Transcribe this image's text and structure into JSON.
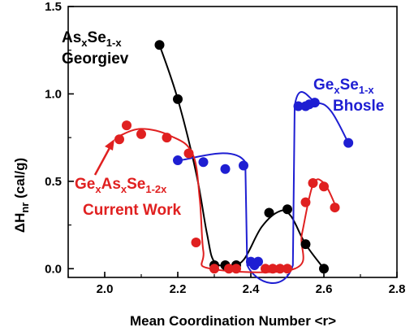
{
  "chart_data": {
    "type": "scatter",
    "xlabel": "Mean Coordination Number <r>",
    "ylabel": {
      "base": "ΔH",
      "sub": "nr",
      "unit": " (cal/g)"
    },
    "xlim": [
      1.9,
      2.8
    ],
    "ylim": [
      -0.05,
      1.5
    ],
    "xticks": [
      "2.0",
      "2.2",
      "2.4",
      "2.6",
      "2.8"
    ],
    "yticks": [
      "0.0",
      "0.5",
      "1.0",
      "1.5"
    ],
    "grid": false,
    "colors": {
      "black": "#000000",
      "blue": "#1e1ed2",
      "red": "#e02020"
    },
    "series": [
      {
        "name": "AsxSe1-x Georgiev",
        "color": "#000000",
        "points": [
          {
            "x": 2.15,
            "y": 1.28
          },
          {
            "x": 2.2,
            "y": 0.97
          },
          {
            "x": 2.3,
            "y": 0.02
          },
          {
            "x": 2.33,
            "y": 0.02
          },
          {
            "x": 2.36,
            "y": 0.02
          },
          {
            "x": 2.45,
            "y": 0.32
          },
          {
            "x": 2.5,
            "y": 0.34
          },
          {
            "x": 2.55,
            "y": 0.14
          },
          {
            "x": 2.6,
            "y": 0.0
          }
        ],
        "curve": [
          {
            "x": 2.15,
            "y": 1.28
          },
          {
            "x": 2.2,
            "y": 0.97
          },
          {
            "x": 2.25,
            "y": 0.55
          },
          {
            "x": 2.28,
            "y": 0.2
          },
          {
            "x": 2.3,
            "y": 0.04
          },
          {
            "x": 2.34,
            "y": 0.02
          },
          {
            "x": 2.38,
            "y": 0.05
          },
          {
            "x": 2.43,
            "y": 0.24
          },
          {
            "x": 2.48,
            "y": 0.33
          },
          {
            "x": 2.51,
            "y": 0.3
          },
          {
            "x": 2.55,
            "y": 0.14
          },
          {
            "x": 2.6,
            "y": 0.0
          }
        ]
      },
      {
        "name": "GexSe1-x Bhosle",
        "color": "#1e1ed2",
        "points": [
          {
            "x": 2.2,
            "y": 0.62
          },
          {
            "x": 2.27,
            "y": 0.61
          },
          {
            "x": 2.33,
            "y": 0.57
          },
          {
            "x": 2.38,
            "y": 0.59
          },
          {
            "x": 2.4,
            "y": 0.04
          },
          {
            "x": 2.41,
            "y": 0.02
          },
          {
            "x": 2.42,
            "y": 0.04
          },
          {
            "x": 2.53,
            "y": 0.93
          },
          {
            "x": 2.55,
            "y": 0.93
          },
          {
            "x": 2.56,
            "y": 0.94
          },
          {
            "x": 2.575,
            "y": 0.95
          },
          {
            "x": 2.667,
            "y": 0.72
          }
        ],
        "curve": [
          {
            "x": 2.2,
            "y": 0.62
          },
          {
            "x": 2.385,
            "y": 0.61
          },
          {
            "x": 2.39,
            "y": 0.02
          },
          {
            "x": 2.515,
            "y": 0.02
          },
          {
            "x": 2.52,
            "y": 0.93
          },
          {
            "x": 2.58,
            "y": 0.95
          },
          {
            "x": 2.62,
            "y": 0.9
          },
          {
            "x": 2.667,
            "y": 0.72
          }
        ]
      },
      {
        "name": "GexAsxSe1-2x Current Work",
        "color": "#e02020",
        "points": [
          {
            "x": 2.04,
            "y": 0.74
          },
          {
            "x": 2.06,
            "y": 0.82
          },
          {
            "x": 2.1,
            "y": 0.77
          },
          {
            "x": 2.17,
            "y": 0.75
          },
          {
            "x": 2.23,
            "y": 0.66
          },
          {
            "x": 2.25,
            "y": 0.15
          },
          {
            "x": 2.3,
            "y": 0.0
          },
          {
            "x": 2.34,
            "y": 0.0
          },
          {
            "x": 2.36,
            "y": 0.0
          },
          {
            "x": 2.44,
            "y": 0.0
          },
          {
            "x": 2.46,
            "y": 0.0
          },
          {
            "x": 2.48,
            "y": 0.0
          },
          {
            "x": 2.5,
            "y": 0.0
          },
          {
            "x": 2.55,
            "y": 0.38
          },
          {
            "x": 2.57,
            "y": 0.49
          },
          {
            "x": 2.6,
            "y": 0.47
          },
          {
            "x": 2.63,
            "y": 0.35
          }
        ],
        "curve": [
          {
            "x": 2.04,
            "y": 0.76
          },
          {
            "x": 2.1,
            "y": 0.8
          },
          {
            "x": 2.18,
            "y": 0.76
          },
          {
            "x": 2.24,
            "y": 0.66
          },
          {
            "x": 2.26,
            "y": 0.4
          },
          {
            "x": 2.27,
            "y": 0.1
          },
          {
            "x": 2.29,
            "y": 0.0
          },
          {
            "x": 2.52,
            "y": 0.0
          },
          {
            "x": 2.54,
            "y": 0.2
          },
          {
            "x": 2.57,
            "y": 0.48
          },
          {
            "x": 2.6,
            "y": 0.49
          },
          {
            "x": 2.63,
            "y": 0.37
          }
        ]
      }
    ],
    "annotations": [
      {
        "id": "georgiev",
        "color": "#000000",
        "line1": {
          "main": "As",
          "s1": "x",
          "mid": "Se",
          "s2": "1-x"
        },
        "line2": "Georgiev"
      },
      {
        "id": "bhosle",
        "color": "#1e1ed2",
        "line1": {
          "main": "Ge",
          "s1": "x",
          "mid": "Se",
          "s2": "1-x"
        },
        "line2": "Bhosle"
      },
      {
        "id": "current",
        "color": "#e02020",
        "line1": {
          "main": "Ge",
          "s1": "x",
          "mid": "As",
          "s2": "x",
          "mid2": "Se",
          "s3": "1-2x"
        },
        "line2": "Current Work"
      }
    ]
  }
}
